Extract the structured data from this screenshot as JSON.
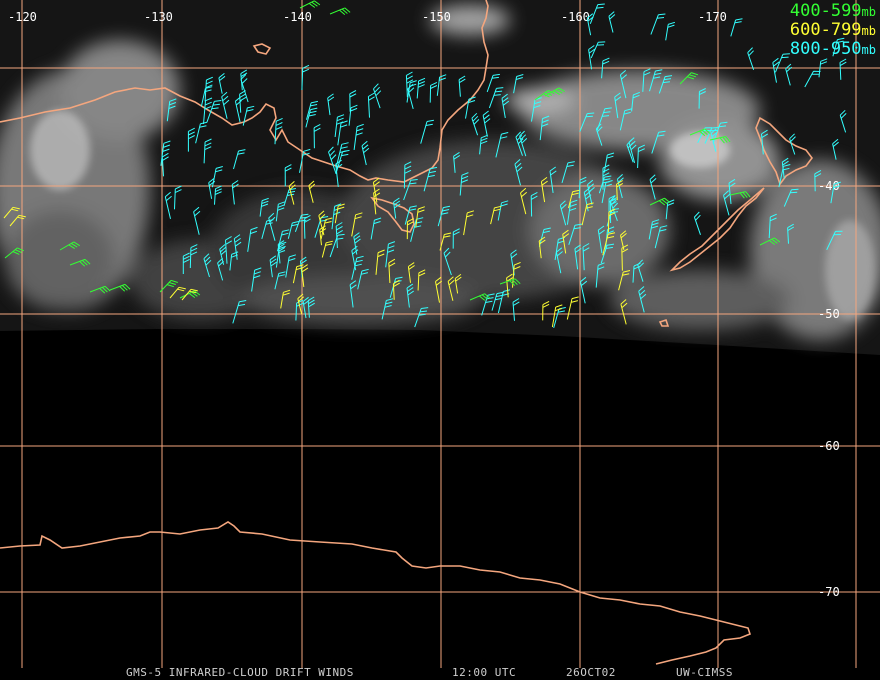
{
  "map": {
    "longitude_labels": [
      "-120",
      "-130",
      "-140",
      "-150",
      "-160",
      "-170"
    ],
    "latitude_labels": [
      "-40",
      "-50",
      "-60",
      "-70"
    ],
    "grid_color": "#f4a67e",
    "coast_color": "#f4a67e"
  },
  "legend": [
    {
      "range": "400-599",
      "unit": "mb",
      "color": "#33ff33"
    },
    {
      "range": "600-799",
      "unit": "mb",
      "color": "#ffff33"
    },
    {
      "range": "800-950",
      "unit": "mb",
      "color": "#33ffff"
    }
  ],
  "footer": {
    "product": "GMS-5 INFRARED-CLOUD DRIFT WINDS",
    "time": "12:00 UTC",
    "date": "26OCT02",
    "source": "UW-CIMSS"
  }
}
